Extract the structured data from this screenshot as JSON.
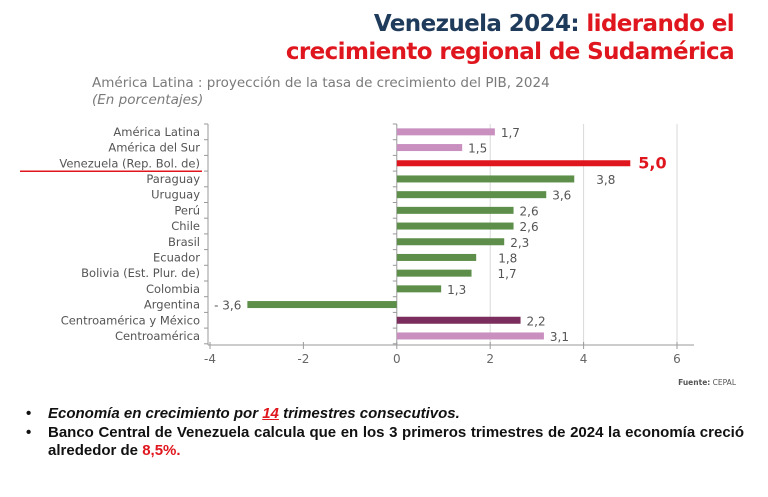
{
  "header": {
    "title_part1": "Venezuela 2024:",
    "title_part2": " liderando el",
    "title_line2": "crecimiento regional de Sudamérica"
  },
  "chart_data": {
    "type": "bar",
    "orientation": "horizontal",
    "title": "América Latina  : proyección de la tasa de crecimiento del PIB, 2024",
    "subtitle": "(En porcentajes)",
    "xlabel": "",
    "ylabel": "",
    "xlim": [
      -4,
      6
    ],
    "xticks": [
      -4,
      -2,
      0,
      2,
      4,
      6
    ],
    "xtick_labels": [
      "-4",
      "-2",
      "0",
      "2",
      "4",
      "6"
    ],
    "grid": "vertical gridlines at 2, 4, 6",
    "highlighted_category": "Venezuela (Rep. Bol. de)",
    "categories": [
      "América Latina",
      "América del Sur",
      "Venezuela (Rep. Bol. de)",
      "Paraguay",
      "Uruguay",
      "Perú",
      "Chile",
      "Brasil",
      "Ecuador",
      "Bolivia (Est. Plur. de)",
      "Colombia",
      "Argentina",
      "Centroamérica y México",
      "Centroamérica"
    ],
    "values": [
      1.7,
      1.5,
      5.0,
      3.8,
      3.6,
      2.6,
      2.6,
      2.3,
      1.8,
      1.7,
      1.3,
      -3.6,
      2.2,
      3.1
    ],
    "value_labels": [
      "1,7",
      "1,5",
      "5,0",
      "3,8",
      "3,6",
      "2,6",
      "2,6",
      "2,3",
      "1,8",
      "1,7",
      "1,3",
      "- 3,6",
      "2,2",
      "3,1"
    ],
    "drawn_bar_extents": [
      2.1,
      1.4,
      5.0,
      3.8,
      3.2,
      2.5,
      2.5,
      2.3,
      1.7,
      1.6,
      0.95,
      -3.2,
      2.65,
      3.15
    ],
    "bar_groups": [
      "region",
      "region",
      "highlight",
      "country",
      "country",
      "country",
      "country",
      "country",
      "country",
      "country",
      "country",
      "country",
      "region-dark",
      "region"
    ],
    "colors": {
      "region": "#c98fbf",
      "region-dark": "#7b2e5e",
      "highlight": "#e0161e",
      "country": "#5e8f4a"
    },
    "source_label": "Fuente:",
    "source_value": " CEPAL"
  },
  "bullets": [
    {
      "pre": "Economía en crecimiento por ",
      "highlight": "14",
      "post": " trimestres consecutivos."
    },
    {
      "pre": "Banco Central de Venezuela calcula que en los 3 primeros trimestres de 2024 la economía creció alrededor de ",
      "highlight": "8,5%.",
      "post": ""
    }
  ],
  "bullet_glyph": "•"
}
